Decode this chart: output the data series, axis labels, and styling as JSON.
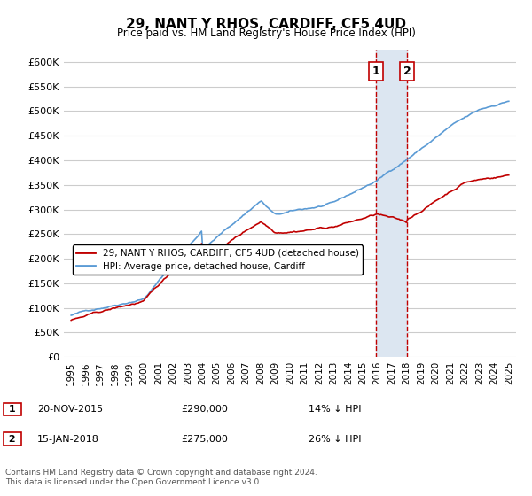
{
  "title": "29, NANT Y RHOS, CARDIFF, CF5 4UD",
  "subtitle": "Price paid vs. HM Land Registry's House Price Index (HPI)",
  "legend_line1": "29, NANT Y RHOS, CARDIFF, CF5 4UD (detached house)",
  "legend_line2": "HPI: Average price, detached house, Cardiff",
  "annotation1_label": "1",
  "annotation1_date": "20-NOV-2015",
  "annotation1_price": "£290,000",
  "annotation1_hpi": "14% ↓ HPI",
  "annotation1_year": 2015.89,
  "annotation1_value": 290000,
  "annotation2_label": "2",
  "annotation2_date": "15-JAN-2018",
  "annotation2_price": "£275,000",
  "annotation2_hpi": "26% ↓ HPI",
  "annotation2_year": 2018.04,
  "annotation2_value": 275000,
  "footer": "Contains HM Land Registry data © Crown copyright and database right 2024.\nThis data is licensed under the Open Government Licence v3.0.",
  "hpi_color": "#5b9bd5",
  "price_color": "#c00000",
  "vline_color": "#c00000",
  "shade_color": "#dce6f1",
  "ylim": [
    0,
    625000
  ],
  "yticks": [
    0,
    50000,
    100000,
    150000,
    200000,
    250000,
    300000,
    350000,
    400000,
    450000,
    500000,
    550000,
    600000
  ],
  "xlim_start": 1994.5,
  "xlim_end": 2025.5,
  "xticks": [
    1995,
    1996,
    1997,
    1998,
    1999,
    2000,
    2001,
    2002,
    2003,
    2004,
    2005,
    2006,
    2007,
    2008,
    2009,
    2010,
    2011,
    2012,
    2013,
    2014,
    2015,
    2016,
    2017,
    2018,
    2019,
    2020,
    2021,
    2022,
    2023,
    2024,
    2025
  ]
}
